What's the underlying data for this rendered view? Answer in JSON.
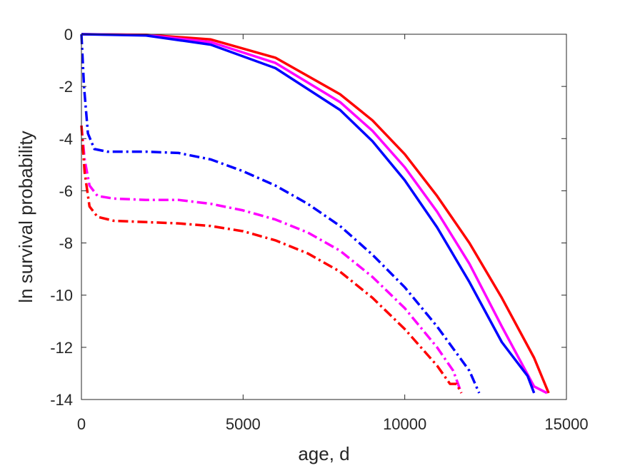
{
  "chart_data": {
    "type": "line",
    "title": "",
    "xlabel": "age, d",
    "ylabel": "ln survival probability",
    "xlim": [
      0,
      15000
    ],
    "ylim": [
      -14,
      0
    ],
    "xticks": [
      0,
      5000,
      10000,
      15000
    ],
    "xtick_labels": [
      "0",
      "5000",
      "10000",
      "15000"
    ],
    "yticks": [
      0,
      -2,
      -4,
      -6,
      -8,
      -10,
      -12,
      -14
    ],
    "ytick_labels": [
      "0",
      "-2",
      "-4",
      "-6",
      "-8",
      "-10",
      "-12",
      "-14"
    ],
    "grid": false,
    "legend": "none",
    "series": [
      {
        "color": "#ff0000",
        "style": "solid",
        "points": [
          [
            0,
            0
          ],
          [
            2000,
            -0.02
          ],
          [
            4000,
            -0.2
          ],
          [
            6000,
            -0.9
          ],
          [
            8000,
            -2.3
          ],
          [
            9000,
            -3.3
          ],
          [
            10000,
            -4.6
          ],
          [
            11000,
            -6.2
          ],
          [
            12000,
            -8.0
          ],
          [
            13000,
            -10.1
          ],
          [
            14000,
            -12.4
          ],
          [
            14450,
            -13.75
          ]
        ]
      },
      {
        "color": "#ff00ff",
        "style": "solid",
        "points": [
          [
            0,
            0
          ],
          [
            2000,
            -0.03
          ],
          [
            4000,
            -0.3
          ],
          [
            6000,
            -1.1
          ],
          [
            8000,
            -2.6
          ],
          [
            9000,
            -3.7
          ],
          [
            10000,
            -5.1
          ],
          [
            11000,
            -6.8
          ],
          [
            12000,
            -8.8
          ],
          [
            13000,
            -11.2
          ],
          [
            14000,
            -13.5
          ],
          [
            14400,
            -13.75
          ]
        ]
      },
      {
        "color": "#0000ff",
        "style": "solid",
        "points": [
          [
            0,
            0
          ],
          [
            2000,
            -0.05
          ],
          [
            4000,
            -0.4
          ],
          [
            6000,
            -1.3
          ],
          [
            8000,
            -2.9
          ],
          [
            9000,
            -4.1
          ],
          [
            10000,
            -5.6
          ],
          [
            11000,
            -7.4
          ],
          [
            12000,
            -9.5
          ],
          [
            13000,
            -11.8
          ],
          [
            13800,
            -13.1
          ],
          [
            14000,
            -13.75
          ]
        ]
      },
      {
        "color": "#0000ff",
        "style": "dashdot",
        "points": [
          [
            0,
            0
          ],
          [
            80,
            -2.0
          ],
          [
            200,
            -3.8
          ],
          [
            400,
            -4.4
          ],
          [
            800,
            -4.5
          ],
          [
            2000,
            -4.5
          ],
          [
            3000,
            -4.55
          ],
          [
            4000,
            -4.8
          ],
          [
            5000,
            -5.25
          ],
          [
            6000,
            -5.8
          ],
          [
            7000,
            -6.5
          ],
          [
            8000,
            -7.35
          ],
          [
            9000,
            -8.45
          ],
          [
            10000,
            -9.7
          ],
          [
            11000,
            -11.2
          ],
          [
            12000,
            -12.9
          ],
          [
            12300,
            -13.75
          ]
        ]
      },
      {
        "color": "#ff00ff",
        "style": "dashdot",
        "points": [
          [
            0,
            -3.5
          ],
          [
            100,
            -4.8
          ],
          [
            250,
            -5.8
          ],
          [
            500,
            -6.2
          ],
          [
            1000,
            -6.3
          ],
          [
            2000,
            -6.35
          ],
          [
            3000,
            -6.35
          ],
          [
            4000,
            -6.5
          ],
          [
            5000,
            -6.75
          ],
          [
            6000,
            -7.1
          ],
          [
            7000,
            -7.6
          ],
          [
            8000,
            -8.3
          ],
          [
            9000,
            -9.3
          ],
          [
            10000,
            -10.5
          ],
          [
            11000,
            -12.0
          ],
          [
            11500,
            -12.9
          ],
          [
            11750,
            -13.75
          ]
        ]
      },
      {
        "color": "#ff0000",
        "style": "dashdot",
        "points": [
          [
            0,
            -3.5
          ],
          [
            100,
            -5.3
          ],
          [
            250,
            -6.6
          ],
          [
            500,
            -7.0
          ],
          [
            1000,
            -7.15
          ],
          [
            2000,
            -7.2
          ],
          [
            3000,
            -7.25
          ],
          [
            4000,
            -7.35
          ],
          [
            5000,
            -7.55
          ],
          [
            6000,
            -7.9
          ],
          [
            7000,
            -8.4
          ],
          [
            8000,
            -9.1
          ],
          [
            9000,
            -10.1
          ],
          [
            10000,
            -11.3
          ],
          [
            11000,
            -12.7
          ],
          [
            11400,
            -13.4
          ],
          [
            11600,
            -13.4
          ],
          [
            11750,
            -13.75
          ]
        ]
      }
    ]
  }
}
